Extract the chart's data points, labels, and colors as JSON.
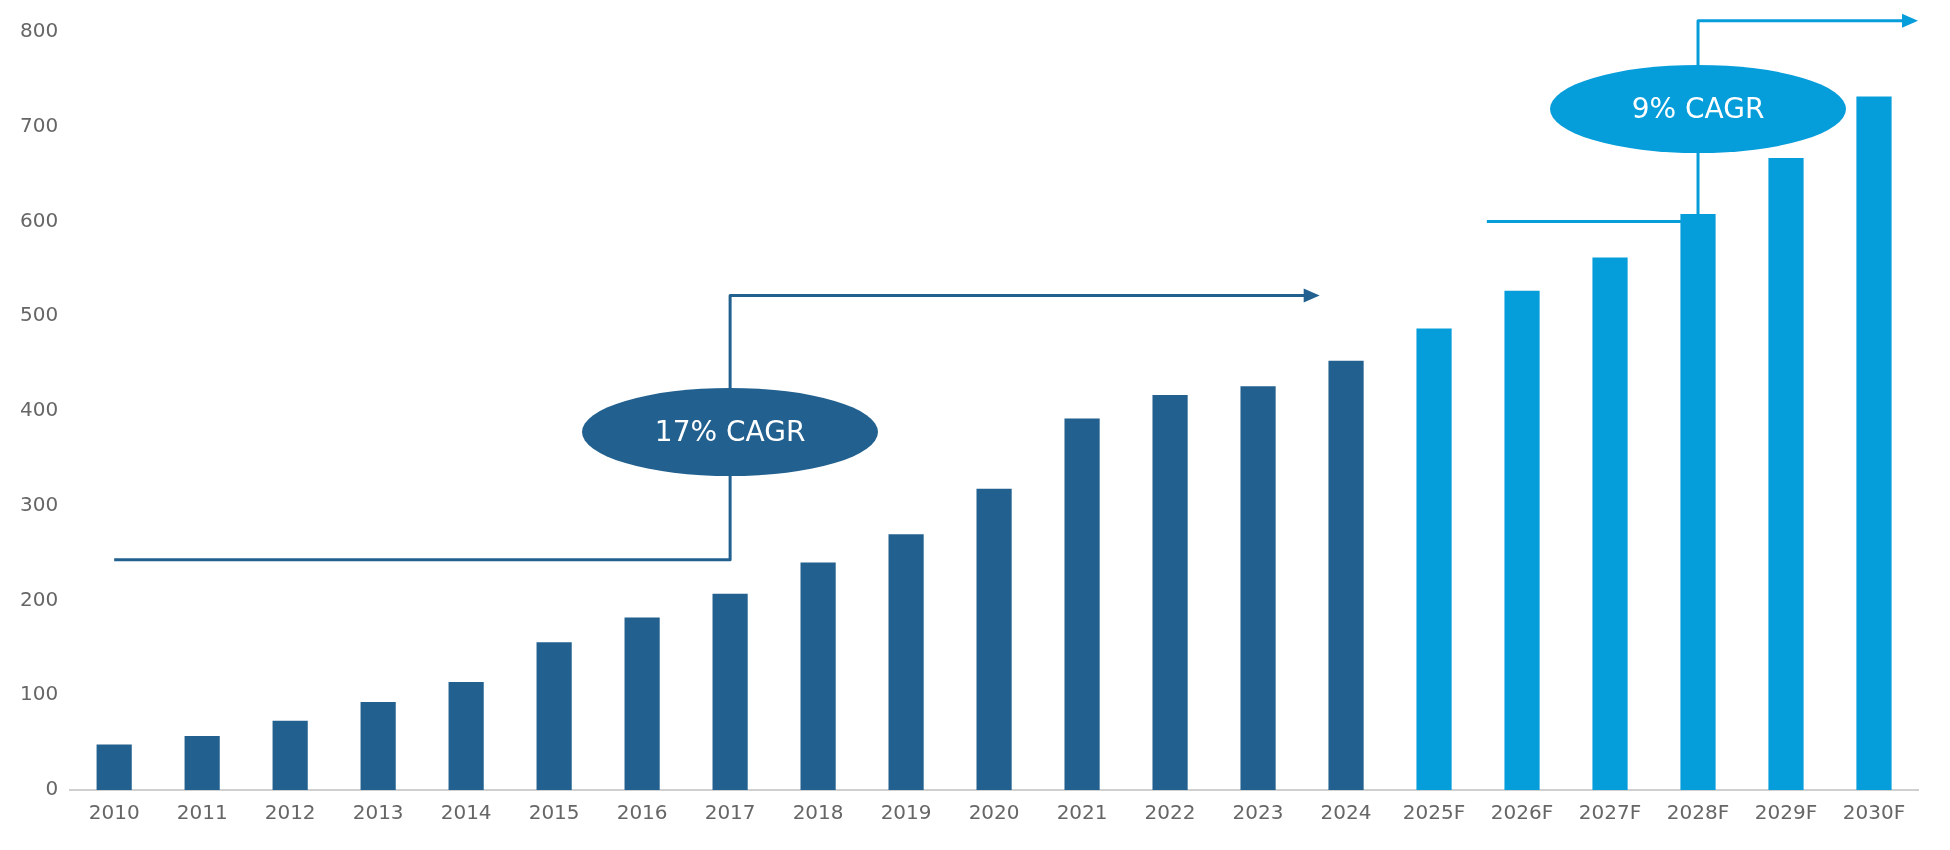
{
  "chart_data": {
    "type": "bar",
    "categories": [
      "2010",
      "2011",
      "2012",
      "2013",
      "2014",
      "2015",
      "2016",
      "2017",
      "2018",
      "2019",
      "2020",
      "2021",
      "2022",
      "2023",
      "2024",
      "2025F",
      "2026F",
      "2027F",
      "2028F",
      "2029F",
      "2030F"
    ],
    "values": [
      48,
      57,
      73,
      93,
      114,
      156,
      182,
      207,
      240,
      270,
      318,
      392,
      417,
      426,
      453,
      487,
      527,
      562,
      608,
      667,
      732
    ],
    "colors": [
      "#22618f",
      "#22618f",
      "#22618f",
      "#22618f",
      "#22618f",
      "#22618f",
      "#22618f",
      "#22618f",
      "#22618f",
      "#22618f",
      "#22618f",
      "#22618f",
      "#22618f",
      "#22618f",
      "#22618f",
      "#069ddb",
      "#069ddb",
      "#069ddb",
      "#069ddb",
      "#069ddb",
      "#069ddb"
    ],
    "ylim": [
      0,
      800
    ],
    "yticks": [
      0,
      100,
      200,
      300,
      400,
      500,
      600,
      700,
      800
    ],
    "grid": false,
    "legend": false,
    "annotations": [
      "17% CAGR",
      "9% CAGR"
    ]
  }
}
